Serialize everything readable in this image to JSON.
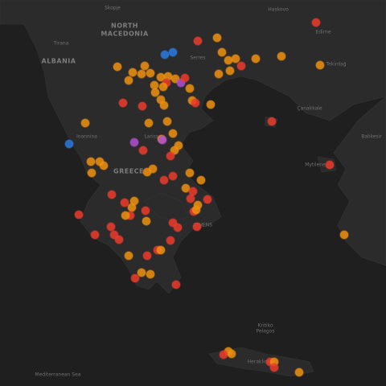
{
  "map_labels": [
    "Skopje",
    "NORTH",
    "MACEDONIA",
    "Tirana",
    "ALBANIA",
    "Serres",
    "Haskovo",
    "Edirne",
    "Tekirdağ",
    "Çanakkale",
    "Ioannina",
    "Larissa",
    "GREECE",
    "Mytilene",
    "Balıkesir",
    "ATHENS",
    "Kritiko",
    "Pelagos",
    "Heraklion",
    "Mediterranean Sea"
  ]
}
